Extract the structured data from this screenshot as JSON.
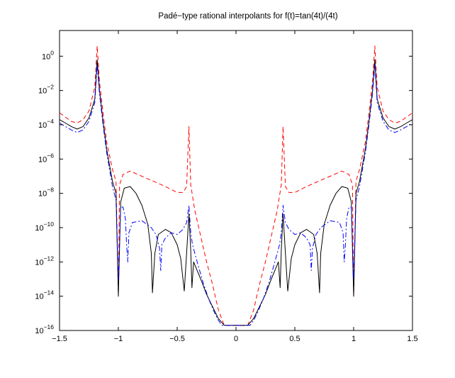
{
  "chart_data": {
    "type": "line",
    "title": "Padé−type rational interpolants for f(t)=tan(4t)/(4t)",
    "xlabel": "",
    "ylabel": "",
    "xlim": [
      -1.5,
      1.5
    ],
    "ylim_log10": [
      -16,
      1.5
    ],
    "yscale": "log",
    "grid": false,
    "x_ticks": [
      {
        "value": -1.5,
        "label": "−1.5"
      },
      {
        "value": -1,
        "label": "−1"
      },
      {
        "value": -0.5,
        "label": "−0.5"
      },
      {
        "value": 0,
        "label": "0"
      },
      {
        "value": 0.5,
        "label": "0.5"
      },
      {
        "value": 1,
        "label": "1"
      },
      {
        "value": 1.5,
        "label": "1.5"
      }
    ],
    "y_ticks": [
      {
        "exp": 0,
        "base": "10",
        "power": "0"
      },
      {
        "exp": -2,
        "base": "10",
        "power": "−2"
      },
      {
        "exp": -4,
        "base": "10",
        "power": "−4"
      },
      {
        "exp": -6,
        "base": "10",
        "power": "−6"
      },
      {
        "exp": -8,
        "base": "10",
        "power": "−8"
      },
      {
        "exp": -10,
        "base": "10",
        "power": "−10"
      },
      {
        "exp": -12,
        "base": "10",
        "power": "−12"
      },
      {
        "exp": -14,
        "base": "10",
        "power": "−14"
      },
      {
        "exp": -16,
        "base": "10",
        "power": "−16"
      }
    ],
    "series": [
      {
        "style": "dashed",
        "color": "#ff0000",
        "points_log10": [
          [
            -1.5,
            -3.3
          ],
          [
            -1.45,
            -3.55
          ],
          [
            -1.4,
            -3.8
          ],
          [
            -1.35,
            -3.9
          ],
          [
            -1.3,
            -3.7
          ],
          [
            -1.25,
            -3.2
          ],
          [
            -1.2,
            -1.8
          ],
          [
            -1.18,
            0.6
          ],
          [
            -1.16,
            -1.5
          ],
          [
            -1.13,
            -3.3
          ],
          [
            -1.1,
            -5.0
          ],
          [
            -1.05,
            -6.6
          ],
          [
            -1.02,
            -7.3
          ],
          [
            -1.0,
            -14.0
          ],
          [
            -0.99,
            -7.5
          ],
          [
            -0.96,
            -6.9
          ],
          [
            -0.9,
            -6.7
          ],
          [
            -0.8,
            -7.0
          ],
          [
            -0.7,
            -7.3
          ],
          [
            -0.6,
            -7.6
          ],
          [
            -0.5,
            -7.95
          ],
          [
            -0.45,
            -7.95
          ],
          [
            -0.42,
            -7.6
          ],
          [
            -0.4,
            -4.1
          ],
          [
            -0.385,
            -7.5
          ],
          [
            -0.35,
            -9.0
          ],
          [
            -0.3,
            -10.5
          ],
          [
            -0.25,
            -12.0
          ],
          [
            -0.2,
            -13.3
          ],
          [
            -0.15,
            -14.8
          ],
          [
            -0.1,
            -15.7
          ],
          [
            0.1,
            -15.7
          ],
          [
            0.15,
            -14.8
          ],
          [
            0.2,
            -13.3
          ],
          [
            0.25,
            -12.0
          ],
          [
            0.3,
            -10.5
          ],
          [
            0.35,
            -9.0
          ],
          [
            0.385,
            -7.5
          ],
          [
            0.4,
            -4.1
          ],
          [
            0.42,
            -7.6
          ],
          [
            0.45,
            -7.95
          ],
          [
            0.5,
            -7.95
          ],
          [
            0.6,
            -7.6
          ],
          [
            0.7,
            -7.3
          ],
          [
            0.8,
            -7.0
          ],
          [
            0.9,
            -6.7
          ],
          [
            0.96,
            -6.9
          ],
          [
            0.99,
            -7.5
          ],
          [
            1.0,
            -14.0
          ],
          [
            1.02,
            -7.3
          ],
          [
            1.05,
            -6.6
          ],
          [
            1.1,
            -5.0
          ],
          [
            1.13,
            -3.3
          ],
          [
            1.16,
            -1.5
          ],
          [
            1.18,
            0.6
          ],
          [
            1.2,
            -1.8
          ],
          [
            1.25,
            -3.2
          ],
          [
            1.3,
            -3.7
          ],
          [
            1.35,
            -3.9
          ],
          [
            1.4,
            -3.8
          ],
          [
            1.45,
            -3.55
          ],
          [
            1.5,
            -3.3
          ]
        ]
      },
      {
        "style": "solid",
        "color": "#000000",
        "points_log10": [
          [
            -1.5,
            -3.7
          ],
          [
            -1.45,
            -3.9
          ],
          [
            -1.4,
            -4.1
          ],
          [
            -1.35,
            -4.25
          ],
          [
            -1.3,
            -4.1
          ],
          [
            -1.25,
            -3.6
          ],
          [
            -1.2,
            -2.5
          ],
          [
            -1.18,
            -0.2
          ],
          [
            -1.16,
            -2.0
          ],
          [
            -1.13,
            -3.8
          ],
          [
            -1.1,
            -5.4
          ],
          [
            -1.05,
            -7.3
          ],
          [
            -1.02,
            -8.0
          ],
          [
            -1.0,
            -14.0
          ],
          [
            -0.98,
            -8.5
          ],
          [
            -0.95,
            -7.7
          ],
          [
            -0.9,
            -7.6
          ],
          [
            -0.85,
            -8.0
          ],
          [
            -0.8,
            -8.7
          ],
          [
            -0.75,
            -9.8
          ],
          [
            -0.72,
            -11.5
          ],
          [
            -0.71,
            -13.8
          ],
          [
            -0.69,
            -11.5
          ],
          [
            -0.66,
            -10.4
          ],
          [
            -0.6,
            -10.1
          ],
          [
            -0.55,
            -10.3
          ],
          [
            -0.5,
            -11.0
          ],
          [
            -0.47,
            -11.8
          ],
          [
            -0.44,
            -13.7
          ],
          [
            -0.42,
            -11.5
          ],
          [
            -0.4,
            -9.2
          ],
          [
            -0.385,
            -11.3
          ],
          [
            -0.375,
            -13.5
          ],
          [
            -0.36,
            -12.0
          ],
          [
            -0.3,
            -13.0
          ],
          [
            -0.25,
            -13.9
          ],
          [
            -0.2,
            -14.6
          ],
          [
            -0.15,
            -15.3
          ],
          [
            -0.1,
            -15.7
          ],
          [
            0.1,
            -15.7
          ],
          [
            0.15,
            -15.3
          ],
          [
            0.2,
            -14.6
          ],
          [
            0.25,
            -13.9
          ],
          [
            0.3,
            -13.0
          ],
          [
            0.36,
            -12.0
          ],
          [
            0.375,
            -13.5
          ],
          [
            0.385,
            -11.3
          ],
          [
            0.4,
            -9.2
          ],
          [
            0.42,
            -11.5
          ],
          [
            0.44,
            -13.7
          ],
          [
            0.47,
            -11.8
          ],
          [
            0.5,
            -11.0
          ],
          [
            0.55,
            -10.3
          ],
          [
            0.6,
            -10.1
          ],
          [
            0.66,
            -10.4
          ],
          [
            0.69,
            -11.5
          ],
          [
            0.71,
            -13.8
          ],
          [
            0.72,
            -11.5
          ],
          [
            0.75,
            -9.8
          ],
          [
            0.8,
            -8.7
          ],
          [
            0.85,
            -8.0
          ],
          [
            0.9,
            -7.6
          ],
          [
            0.95,
            -7.7
          ],
          [
            0.98,
            -8.5
          ],
          [
            1.0,
            -14.0
          ],
          [
            1.02,
            -8.0
          ],
          [
            1.05,
            -7.3
          ],
          [
            1.1,
            -5.4
          ],
          [
            1.13,
            -3.8
          ],
          [
            1.16,
            -2.0
          ],
          [
            1.18,
            -0.2
          ],
          [
            1.2,
            -2.5
          ],
          [
            1.25,
            -3.6
          ],
          [
            1.3,
            -4.1
          ],
          [
            1.35,
            -4.25
          ],
          [
            1.4,
            -4.1
          ],
          [
            1.45,
            -3.9
          ],
          [
            1.5,
            -3.7
          ]
        ]
      },
      {
        "style": "dashdot",
        "color": "#0000ff",
        "points_log10": [
          [
            -1.5,
            -3.9
          ],
          [
            -1.45,
            -4.1
          ],
          [
            -1.4,
            -4.3
          ],
          [
            -1.35,
            -4.45
          ],
          [
            -1.3,
            -4.3
          ],
          [
            -1.25,
            -3.8
          ],
          [
            -1.2,
            -2.7
          ],
          [
            -1.18,
            -0.5
          ],
          [
            -1.16,
            -2.2
          ],
          [
            -1.13,
            -4.0
          ],
          [
            -1.1,
            -5.6
          ],
          [
            -1.05,
            -7.6
          ],
          [
            -1.02,
            -8.4
          ],
          [
            -1.0,
            -13.0
          ],
          [
            -0.98,
            -8.8
          ],
          [
            -0.96,
            -8.8
          ],
          [
            -0.94,
            -9.5
          ],
          [
            -0.93,
            -11.0
          ],
          [
            -0.92,
            -12.0
          ],
          [
            -0.91,
            -10.3
          ],
          [
            -0.88,
            -9.7
          ],
          [
            -0.8,
            -9.6
          ],
          [
            -0.72,
            -10.0
          ],
          [
            -0.68,
            -10.4
          ],
          [
            -0.65,
            -11.2
          ],
          [
            -0.64,
            -12.5
          ],
          [
            -0.63,
            -11.0
          ],
          [
            -0.6,
            -10.6
          ],
          [
            -0.55,
            -10.3
          ],
          [
            -0.5,
            -10.4
          ],
          [
            -0.45,
            -10.1
          ],
          [
            -0.42,
            -9.7
          ],
          [
            -0.4,
            -8.7
          ],
          [
            -0.385,
            -10.3
          ],
          [
            -0.37,
            -11.0
          ],
          [
            -0.33,
            -12.0
          ],
          [
            -0.28,
            -13.2
          ],
          [
            -0.23,
            -14.2
          ],
          [
            -0.18,
            -15.0
          ],
          [
            -0.15,
            -15.4
          ],
          [
            -0.12,
            -15.7
          ],
          [
            0.12,
            -15.7
          ],
          [
            0.15,
            -15.4
          ],
          [
            0.18,
            -15.0
          ],
          [
            0.23,
            -14.2
          ],
          [
            0.28,
            -13.2
          ],
          [
            0.33,
            -12.0
          ],
          [
            0.37,
            -11.0
          ],
          [
            0.385,
            -10.3
          ],
          [
            0.4,
            -8.7
          ],
          [
            0.42,
            -9.7
          ],
          [
            0.45,
            -10.1
          ],
          [
            0.5,
            -10.4
          ],
          [
            0.55,
            -10.3
          ],
          [
            0.6,
            -10.6
          ],
          [
            0.63,
            -11.0
          ],
          [
            0.64,
            -12.5
          ],
          [
            0.65,
            -11.2
          ],
          [
            0.68,
            -10.4
          ],
          [
            0.72,
            -10.0
          ],
          [
            0.8,
            -9.6
          ],
          [
            0.88,
            -9.7
          ],
          [
            0.91,
            -10.3
          ],
          [
            0.92,
            -12.0
          ],
          [
            0.93,
            -11.0
          ],
          [
            0.94,
            -9.5
          ],
          [
            0.96,
            -8.8
          ],
          [
            0.98,
            -8.8
          ],
          [
            1.0,
            -13.0
          ],
          [
            1.02,
            -8.4
          ],
          [
            1.05,
            -7.6
          ],
          [
            1.1,
            -5.6
          ],
          [
            1.13,
            -4.0
          ],
          [
            1.16,
            -2.2
          ],
          [
            1.18,
            -0.5
          ],
          [
            1.2,
            -2.7
          ],
          [
            1.25,
            -3.8
          ],
          [
            1.3,
            -4.3
          ],
          [
            1.35,
            -4.45
          ],
          [
            1.4,
            -4.3
          ],
          [
            1.45,
            -4.1
          ],
          [
            1.5,
            -3.9
          ]
        ]
      }
    ]
  }
}
